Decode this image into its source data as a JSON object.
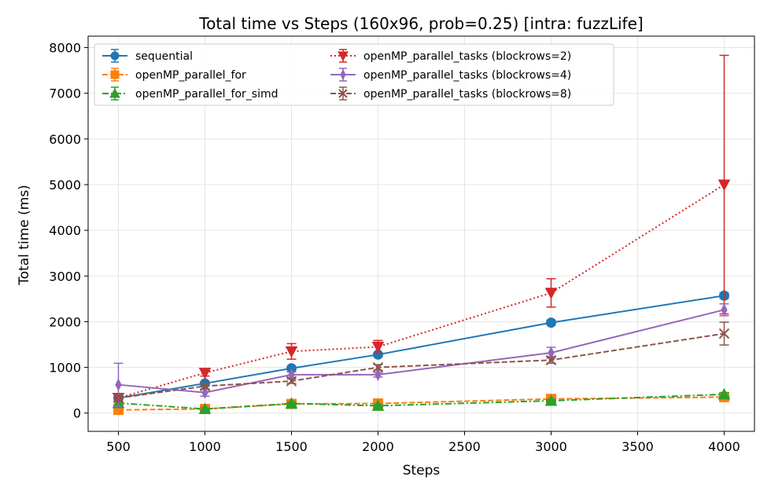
{
  "chart_data": {
    "type": "line",
    "title": "Total time vs Steps (160x96, prob=0.25) [intra: fuzzLife]",
    "xlabel": "Steps",
    "ylabel": "Total time (ms)",
    "xlim": [
      325,
      4175
    ],
    "ylim": [
      -400,
      8250
    ],
    "x_ticks": [
      500,
      1000,
      1500,
      2000,
      2500,
      3000,
      3500,
      4000
    ],
    "y_ticks": [
      0,
      1000,
      2000,
      3000,
      4000,
      5000,
      6000,
      7000,
      8000
    ],
    "grid": true,
    "legend_position": "top-left",
    "x": [
      500,
      1000,
      1500,
      2000,
      3000,
      4000
    ],
    "series": [
      {
        "name": "sequential",
        "color": "#1f77b4",
        "dash": "solid",
        "marker": "circle",
        "values": [
          330,
          650,
          980,
          1280,
          1980,
          2570
        ],
        "err": [
          20,
          30,
          40,
          40,
          50,
          60
        ]
      },
      {
        "name": "openMP_parallel_for",
        "color": "#ff7f0e",
        "dash": "dashed",
        "marker": "square",
        "values": [
          70,
          90,
          200,
          210,
          310,
          350
        ],
        "err": [
          40,
          20,
          40,
          40,
          40,
          50
        ]
      },
      {
        "name": "openMP_parallel_for_simd",
        "color": "#2ca02c",
        "dash": "dashdot",
        "marker": "triangle-up",
        "values": [
          220,
          90,
          210,
          160,
          270,
          410
        ],
        "err": [
          30,
          20,
          30,
          30,
          30,
          40
        ]
      },
      {
        "name": "openMP_parallel_tasks (blockrows=2)",
        "color": "#d62728",
        "dash": "dotted",
        "marker": "triangle-down",
        "values": [
          330,
          880,
          1350,
          1450,
          2630,
          5000
        ],
        "err": [
          60,
          70,
          170,
          140,
          310,
          2830
        ]
      },
      {
        "name": "openMP_parallel_tasks (blockrows=4)",
        "color": "#9467bd",
        "dash": "solid",
        "marker": "thin-diamond",
        "values": [
          620,
          450,
          840,
          840,
          1320,
          2260
        ],
        "err": [
          470,
          80,
          60,
          50,
          120,
          130
        ]
      },
      {
        "name": "openMP_parallel_tasks (blockrows=8)",
        "color": "#8c564b",
        "dash": "dashed",
        "marker": "x",
        "values": [
          330,
          590,
          700,
          1000,
          1160,
          1740
        ],
        "err": [
          70,
          60,
          50,
          60,
          70,
          250
        ]
      }
    ]
  }
}
